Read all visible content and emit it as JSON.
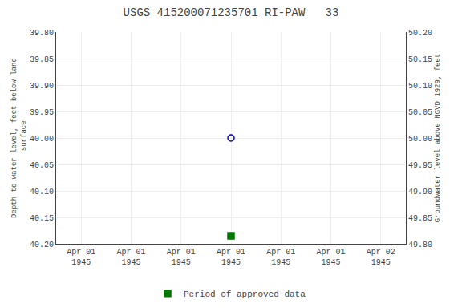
{
  "chart_data": {
    "type": "scatter",
    "title": "USGS 415200071235701 RI-PAW   33",
    "y_label": "Depth to water level, feet below land\n surface",
    "y2_label": "Groundwater level above NGVD 1929, feet",
    "categories": [
      "Apr 01\n1945",
      "Apr 01\n1945",
      "Apr 01\n1945",
      "Apr 01\n1945",
      "Apr 01\n1945",
      "Apr 01\n1945",
      "Apr 02\n1945"
    ],
    "series": [
      {
        "color": "#0000cc",
        "marker": "circle-open",
        "values": [
          null,
          null,
          null,
          40.0,
          null,
          null,
          null
        ]
      },
      {
        "name": "Period of approved data",
        "color": "#007700",
        "marker": "square",
        "values": [
          null,
          null,
          null,
          40.185,
          null,
          null,
          null
        ]
      }
    ],
    "ylim": [
      40.2,
      39.8
    ],
    "yticks": [
      {
        "value": 39.8,
        "label": "39.80"
      },
      39.85,
      {
        "value": 39.9,
        "label": "39.90"
      },
      39.95,
      {
        "value": 40,
        "label": "40.00"
      },
      40.05,
      {
        "value": 40.1,
        "label": "40.10"
      },
      40.15,
      {
        "value": 40.2,
        "label": "40.20"
      }
    ],
    "y2lim": [
      49.8,
      50.2
    ],
    "y2ticks": [
      {
        "value": 50.2,
        "label": "50.20"
      },
      50.15,
      {
        "value": 50.1,
        "label": "50.10"
      },
      50.05,
      {
        "value": 50,
        "label": "50.00"
      },
      49.95,
      {
        "value": 49.9,
        "label": "49.90"
      },
      49.85,
      {
        "value": 49.8,
        "label": "49.80"
      }
    ],
    "grid": true,
    "legend": "bottom"
  }
}
